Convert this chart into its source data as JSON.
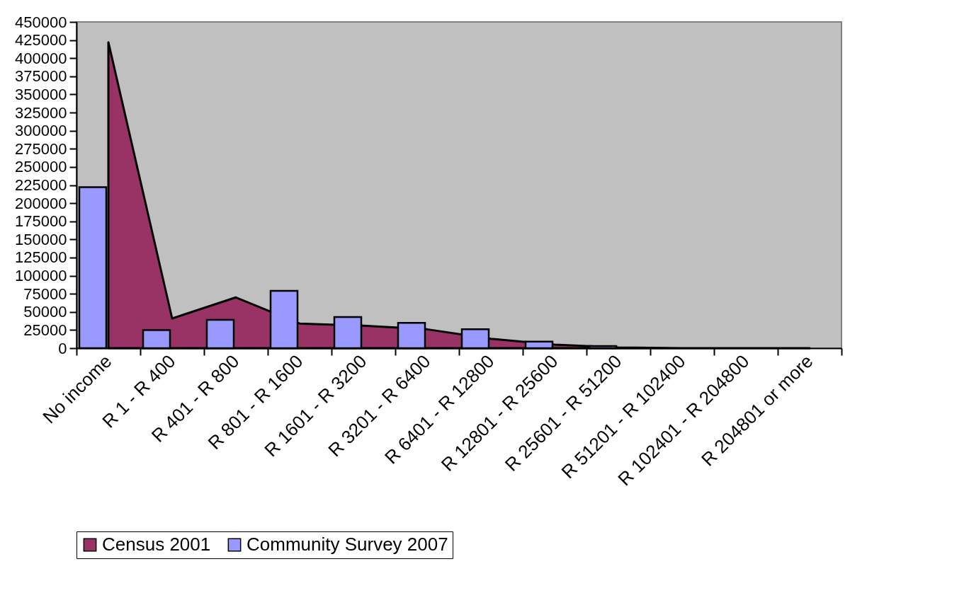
{
  "chart_data": {
    "type": "bar",
    "categories": [
      "No income",
      "R 1 - R 400",
      "R 401 - R 800",
      "R 801 - R 1600",
      "R 1601 - R 3200",
      "R 3201 - R 6400",
      "R 6401 - R 12800",
      "R 12801 - R 25600",
      "R 25601 - R 51200",
      "R 51201 - R 102400",
      "R 102401 - R 204800",
      "R 204801 or more"
    ],
    "series": [
      {
        "name": "Census 2001",
        "type": "area",
        "color": "#993366",
        "values": [
          422000,
          41000,
          70000,
          34000,
          31000,
          26000,
          13000,
          5000,
          1000,
          0,
          0,
          0
        ]
      },
      {
        "name": "Community Survey 2007",
        "color": "#9999ff",
        "values": [
          222000,
          25000,
          39000,
          79000,
          43000,
          35000,
          26000,
          9000,
          3000,
          null,
          null,
          null
        ]
      }
    ],
    "ylim": [
      0,
      450000
    ],
    "yticks": [
      0,
      25000,
      50000,
      75000,
      100000,
      125000,
      150000,
      175000,
      200000,
      225000,
      250000,
      275000,
      300000,
      325000,
      350000,
      375000,
      400000,
      425000,
      450000
    ],
    "grid": false,
    "legend": "bottom"
  }
}
